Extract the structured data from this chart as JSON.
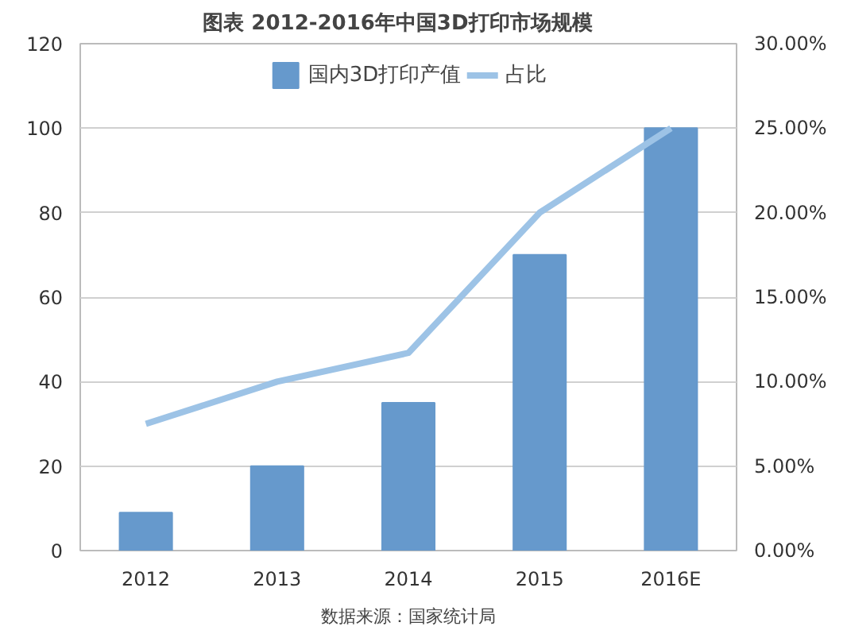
{
  "chart_data": {
    "type": "bar",
    "title": "图表    2012-2016年中国3D打印市场规模",
    "categories": [
      "2012",
      "2013",
      "2014",
      "2015",
      "2016E"
    ],
    "series": [
      {
        "name": "国内3D打印产值",
        "color": "#6699cc",
        "values": [
          9,
          20,
          35,
          70,
          100
        ]
      },
      {
        "name": "占比",
        "type": "line",
        "axis": "y2",
        "color": "#9dc3e6",
        "values": [
          7.5,
          10,
          11.7,
          20,
          25
        ]
      }
    ],
    "ylim": [
      0,
      120
    ],
    "yticks": [
      0,
      20,
      40,
      60,
      80,
      100,
      120
    ],
    "y2lim": [
      0,
      30
    ],
    "y2ticks": [
      {
        "value": 0,
        "label": "0.00%"
      },
      {
        "value": 5,
        "label": "5.00%"
      },
      {
        "value": 10,
        "label": "10.00%"
      },
      {
        "value": 15,
        "label": "15.00%"
      },
      {
        "value": 20,
        "label": "20.00%"
      },
      {
        "value": 25,
        "label": "25.00%"
      },
      {
        "value": 30,
        "label": "30.00%"
      }
    ],
    "grid": "y",
    "legend": "top",
    "annotations": [
      "数据来源：国家统计局"
    ]
  }
}
